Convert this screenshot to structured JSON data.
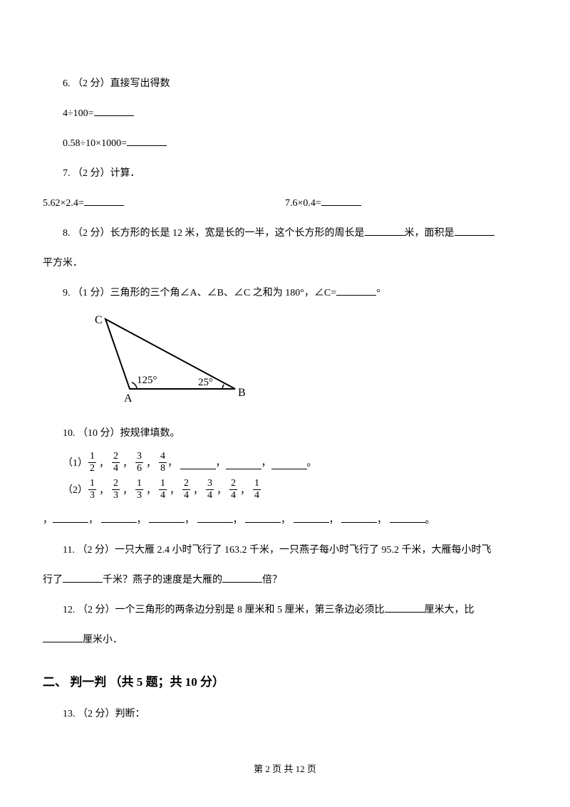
{
  "q6": {
    "label": "6.  （2 分）直接写出得数",
    "exp1_a": "4÷100=",
    "exp2_a": "0.58÷10×1000="
  },
  "q7": {
    "label": "7.  （2 分）计算．",
    "exp1": "5.62×2.4=",
    "exp2": "7.6×0.4="
  },
  "q8": {
    "pre": "8.   （2 分）长方形的长是 12 米，宽是长的一半，这个长方形的周长是",
    "mid": "米，面积是",
    "suffix": "平方米．"
  },
  "q9": {
    "text": "9.  （1 分）三角形的三个角∠A、∠B、∠C 之和为 180°，∠C=",
    "degree": "°",
    "triangle": {
      "labels": {
        "A": "A",
        "B": "B",
        "C": "C",
        "angA": "125°",
        "angB": "25°"
      },
      "stroke": "#000000",
      "line_width": 2
    }
  },
  "q10": {
    "label": "10.  （10 分）按规律填数。",
    "r1_prefix": "（1）",
    "r1_fracs": [
      [
        1,
        2
      ],
      [
        2,
        4
      ],
      [
        3,
        6
      ],
      [
        4,
        8
      ]
    ],
    "r1_tail_comma": "，",
    "r1_tail_sep": "，",
    "r1_tail_end": "。",
    "r2_prefix": "（2）",
    "r2_fracs": [
      [
        1,
        3
      ],
      [
        2,
        3
      ],
      [
        1,
        3
      ],
      [
        1,
        4
      ],
      [
        2,
        4
      ],
      [
        3,
        4
      ],
      [
        2,
        4
      ],
      [
        1,
        4
      ]
    ],
    "r2_tail_sep": "，",
    "r2_tail_end": "。",
    "r2_line2_lead": "，"
  },
  "q11": {
    "pre": "11.  （2 分）一只大雁 2.4 小时飞行了 163.2 千米，一只燕子每小时飞行了 95.2 千米，大雁每小时飞",
    "mid1": "行了",
    "mid2": "千米？燕子的速度是大雁的",
    "suffix": "倍？"
  },
  "q12": {
    "pre": "12.     （2 分）一个三角形的两条边分别是 8 厘米和 5 厘米，第三条边必须比",
    "mid": "厘米大，比",
    "suffix": "厘米小．"
  },
  "section2": "二、 判一判 （共 5 题；共 10 分）",
  "q13": "13.  （2 分）判断：",
  "footer": "第  2  页  共  12  页"
}
